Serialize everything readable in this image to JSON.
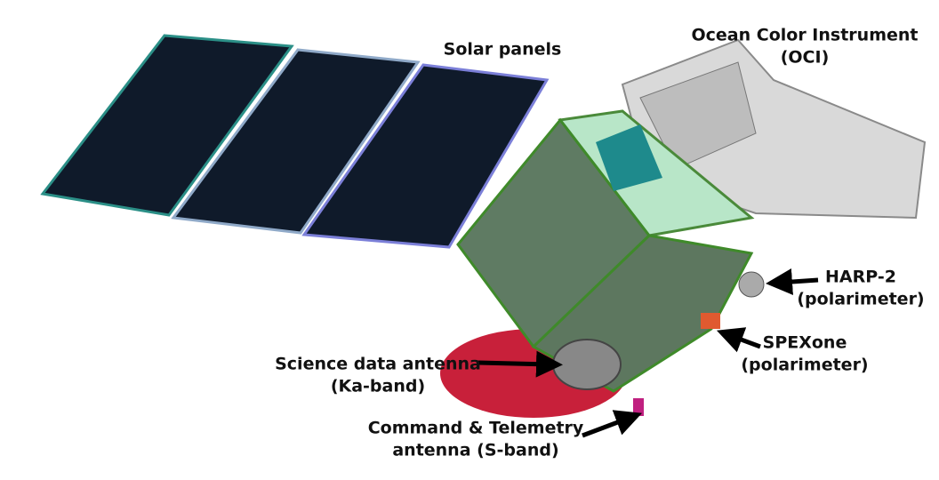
{
  "labels": [
    {
      "lines": [
        "Solar panels"
      ]
    },
    {
      "lines": [
        "Ocean Color Instrument",
        "(OCI)"
      ]
    },
    {
      "lines": [
        "HARP-2",
        "(polarimeter)"
      ]
    },
    {
      "lines": [
        "SPEXone",
        "(polarimeter)"
      ]
    },
    {
      "lines": [
        "Science data antenna",
        "(Ka-band)"
      ]
    },
    {
      "lines": [
        "Command & Telemetry",
        "antenna (S-band)"
      ]
    }
  ]
}
